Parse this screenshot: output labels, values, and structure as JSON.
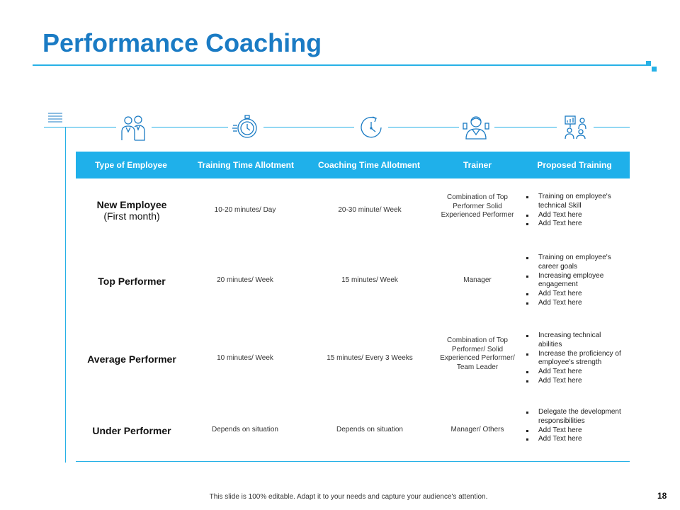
{
  "title": "Performance Coaching",
  "headers": [
    "Type of Employee",
    "Training Time Allotment",
    "Coaching Time Allotment",
    "Trainer",
    "Proposed Training"
  ],
  "icons": [
    "people-icon",
    "stopwatch-icon",
    "clock-icon",
    "trainer-icon",
    "presentation-icon"
  ],
  "rows": [
    {
      "label": "New Employee",
      "sublabel": "(First month)",
      "training_time": "10-20 minutes/ Day",
      "coaching_time": "20-30 minute/  Week",
      "trainer": "Combination  of Top Performer Solid Experienced Performer",
      "proposed": [
        "Training on employee's technical Skill",
        "Add Text here",
        "Add Text here"
      ]
    },
    {
      "label": "Top Performer",
      "sublabel": "",
      "training_time": "20 minutes/ Week",
      "coaching_time": "15 minutes/ Week",
      "trainer": "Manager",
      "proposed": [
        "Training on employee's career goals",
        "Increasing employee engagement",
        "Add Text here",
        "Add Text here"
      ]
    },
    {
      "label": "Average Performer",
      "sublabel": "",
      "training_time": "10 minutes/ Week",
      "coaching_time": "15 minutes/ Every 3 Weeks",
      "trainer": "Combination  of Top Performer/ Solid Experienced Performer/ Team Leader",
      "proposed": [
        "Increasing technical abilities",
        "Increase the proficiency of employee's strength",
        "Add Text here",
        "Add Text here"
      ]
    },
    {
      "label": "Under Performer",
      "sublabel": "",
      "training_time": "Depends on situation",
      "coaching_time": "Depends on situation",
      "trainer": "Manager/ Others",
      "proposed": [
        "Delegate the development responsibilities",
        "Add Text here",
        "Add Text here"
      ]
    }
  ],
  "footer": "This slide is 100% editable.  Adapt it to your needs and capture your audience's attention.",
  "page_number": "18",
  "colors": {
    "accent": "#1fb0ea",
    "title": "#1a7bc4"
  }
}
